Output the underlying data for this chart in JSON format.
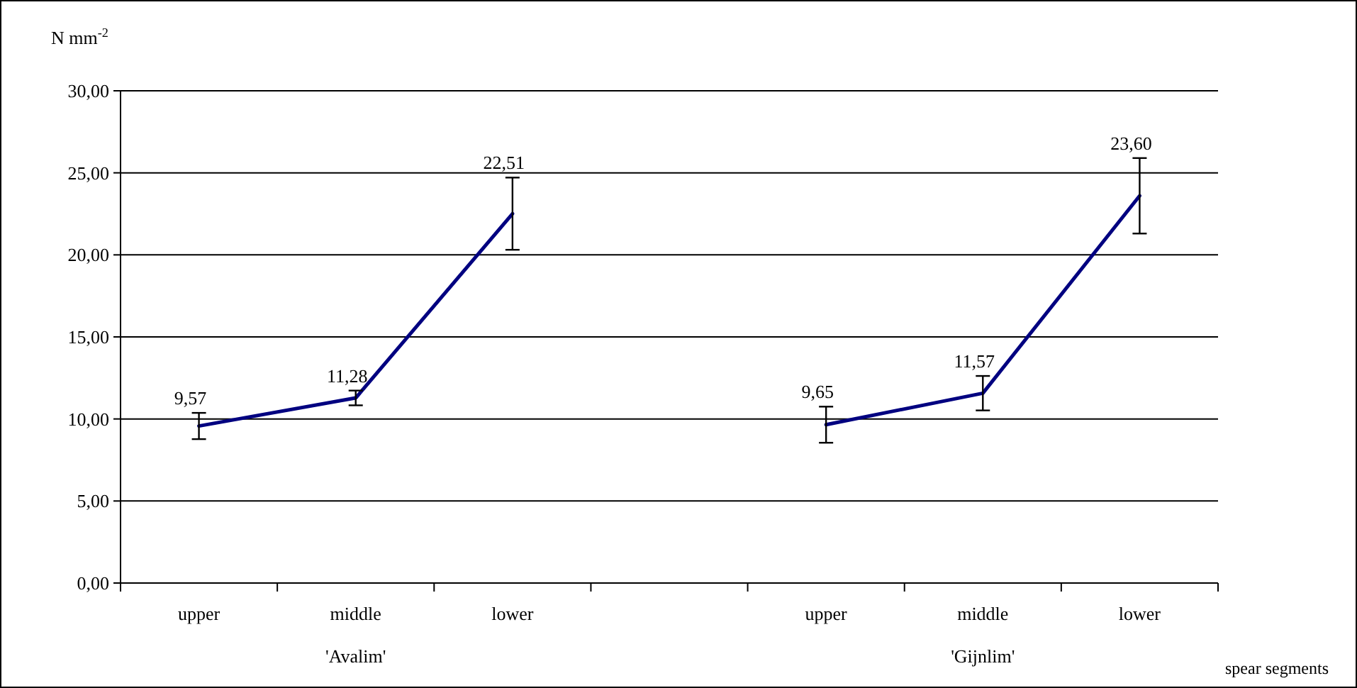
{
  "chart_data": {
    "type": "line",
    "ylabel": "N mm$^{-2}$",
    "xlabel": "spear segments",
    "categories": [
      "upper",
      "middle",
      "lower",
      null,
      "upper",
      "middle",
      "lower"
    ],
    "series": [
      {
        "color": "#000080",
        "values": [
          9.57,
          11.28,
          22.51,
          null,
          9.65,
          11.57,
          23.6
        ],
        "value_labels": [
          "9,57",
          "11,28",
          "22,51",
          null,
          "9,65",
          "11,57",
          "23,60"
        ],
        "errors": [
          0.8,
          0.45,
          2.2,
          null,
          1.1,
          1.05,
          2.3
        ]
      }
    ],
    "annotations": [
      "'Avalim'",
      "'Gijnlim'"
    ],
    "ylim": [
      0,
      30
    ],
    "yticks": [
      {
        "value": 0,
        "label": "0,00"
      },
      {
        "value": 5,
        "label": "5,00"
      },
      {
        "value": 10,
        "label": "10,00"
      },
      {
        "value": 15,
        "label": "15,00"
      },
      {
        "value": 20,
        "label": "20,00"
      },
      {
        "value": 25,
        "label": "25,00"
      },
      {
        "value": 30,
        "label": "30,00"
      }
    ],
    "grid": "y",
    "marker": "none",
    "line_style": "solid"
  }
}
